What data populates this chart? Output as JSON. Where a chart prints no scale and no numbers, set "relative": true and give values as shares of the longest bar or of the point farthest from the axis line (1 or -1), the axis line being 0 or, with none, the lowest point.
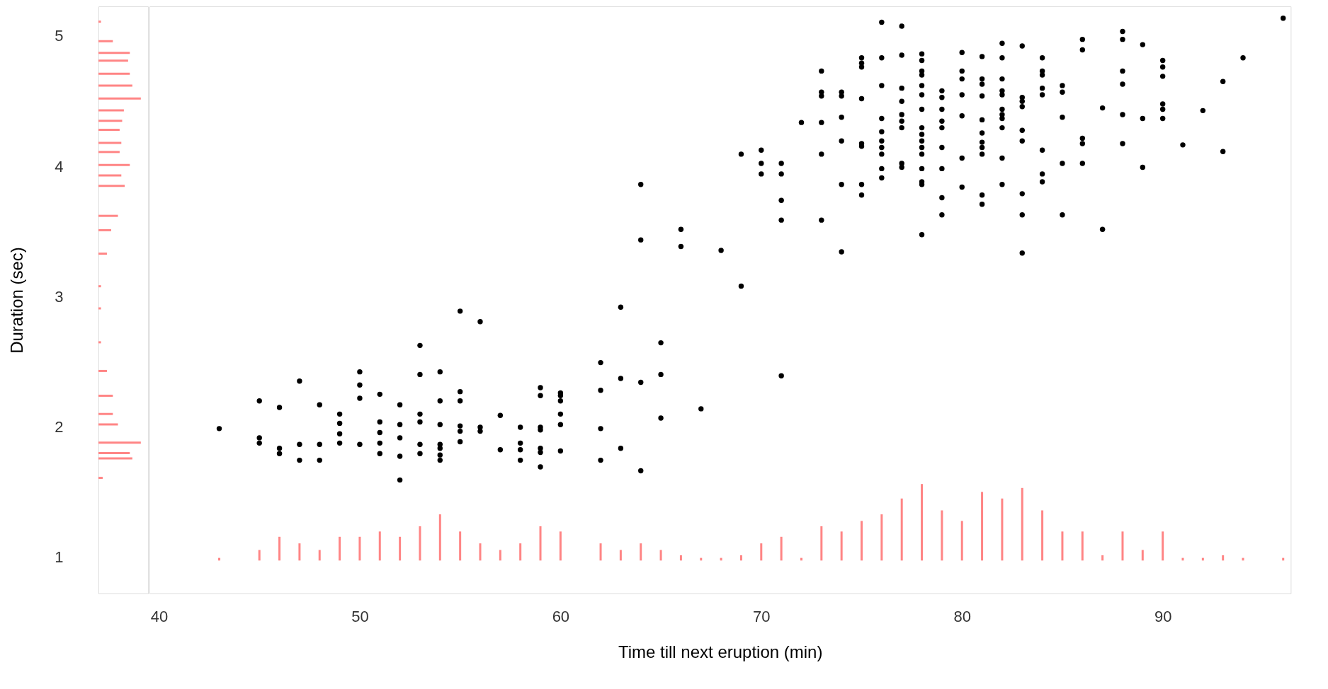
{
  "chart_data": [
    {
      "type": "bar",
      "orientation": "horizontal",
      "relative": true,
      "ylabel": "Duration (sec)",
      "ylim": [
        0.75,
        5.2
      ],
      "yticks": [
        1,
        2,
        3,
        4,
        5
      ],
      "tick_labels": "y",
      "grid": false,
      "series": [
        {
          "color": "#ff6666",
          "x": [
            5.11,
            4.96,
            4.87,
            4.81,
            4.71,
            4.62,
            4.52,
            4.43,
            4.35,
            4.28,
            4.18,
            4.11,
            4.01,
            3.93,
            3.85,
            3.62,
            3.51,
            3.33,
            3.08,
            2.91,
            2.65,
            2.43,
            2.24,
            2.1,
            2.02,
            1.88,
            1.8,
            1.76,
            1.61
          ],
          "values": [
            0.06,
            0.34,
            0.74,
            0.7,
            0.74,
            0.8,
            1,
            0.6,
            0.56,
            0.5,
            0.54,
            0.5,
            0.74,
            0.54,
            0.62,
            0.46,
            0.3,
            0.2,
            0.06,
            0.06,
            0.06,
            0.2,
            0.34,
            0.34,
            0.46,
            1,
            0.74,
            0.8,
            0.1
          ]
        }
      ]
    },
    {
      "type": "scatter",
      "xlabel": "Time till next eruption (min)",
      "xlim": [
        39.7,
        96.2
      ],
      "ylim": [
        0.75,
        5.2
      ],
      "xticks": [
        40,
        50,
        60,
        70,
        80,
        90
      ],
      "tick_labels": "x",
      "grid": false,
      "marker": "circle",
      "series": [
        {
          "color": "#000000",
          "x": [
            43,
            45,
            45,
            45,
            46,
            46,
            46,
            47,
            47,
            47,
            48,
            48,
            48,
            49,
            49,
            49,
            49,
            50,
            50,
            50,
            50,
            51,
            51,
            51,
            51,
            51,
            52,
            52,
            52,
            52,
            52,
            53,
            53,
            53,
            53,
            53,
            53,
            54,
            54,
            54,
            54,
            54,
            54,
            54,
            55,
            55,
            55,
            55,
            55,
            55,
            56,
            56,
            56,
            57,
            57,
            58,
            58,
            58,
            58,
            59,
            59,
            59,
            59,
            59,
            59,
            59,
            60,
            60,
            60,
            60,
            60,
            60,
            62,
            62,
            62,
            62,
            63,
            63,
            63,
            64,
            64,
            64,
            64,
            65,
            65,
            65,
            66,
            66,
            67,
            68,
            69,
            69,
            70,
            70,
            70,
            71,
            71,
            71,
            71,
            71,
            72,
            73,
            73,
            73,
            73,
            73,
            73,
            74,
            74,
            74,
            74,
            74,
            74,
            75,
            75,
            75,
            75,
            75,
            75,
            75,
            75,
            76,
            76,
            76,
            76,
            76,
            76,
            76,
            76,
            76,
            76,
            77,
            77,
            77,
            77,
            77,
            77,
            77,
            77,
            77,
            78,
            78,
            78,
            78,
            78,
            78,
            78,
            78,
            78,
            78,
            78,
            78,
            78,
            78,
            78,
            78,
            79,
            79,
            79,
            79,
            79,
            79,
            79,
            79,
            79,
            80,
            80,
            80,
            80,
            80,
            80,
            80,
            81,
            81,
            81,
            81,
            81,
            81,
            81,
            81,
            81,
            81,
            81,
            82,
            82,
            82,
            82,
            82,
            82,
            82,
            82,
            82,
            82,
            82,
            83,
            83,
            83,
            83,
            83,
            83,
            83,
            83,
            83,
            84,
            84,
            84,
            84,
            84,
            84,
            84,
            84,
            85,
            85,
            85,
            85,
            85,
            86,
            86,
            86,
            86,
            86,
            87,
            87,
            88,
            88,
            88,
            88,
            88,
            88,
            89,
            89,
            89,
            90,
            90,
            90,
            90,
            90,
            90,
            91,
            92,
            93,
            93,
            94,
            96
          ],
          "values": [
            2.0,
            2.21,
            1.93,
            1.89,
            2.16,
            1.85,
            1.81,
            2.36,
            1.88,
            1.76,
            2.18,
            1.88,
            1.76,
            2.11,
            2.04,
            1.96,
            1.89,
            2.43,
            2.33,
            2.23,
            1.88,
            2.26,
            2.05,
            1.97,
            1.89,
            1.81,
            2.18,
            2.03,
            1.93,
            1.79,
            1.61,
            2.63,
            2.41,
            2.11,
            2.05,
            1.88,
            1.81,
            2.43,
            2.21,
            2.03,
            1.88,
            1.85,
            1.8,
            1.76,
            2.89,
            2.28,
            2.21,
            2.02,
            1.98,
            1.9,
            2.81,
            2.01,
            1.98,
            2.1,
            1.84,
            2.01,
            1.89,
            1.84,
            1.76,
            2.31,
            2.25,
            2.01,
            1.99,
            1.85,
            1.82,
            1.71,
            2.27,
            2.25,
            2.21,
            2.11,
            2.03,
            1.83,
            2.5,
            2.29,
            2.0,
            1.76,
            2.92,
            2.38,
            1.85,
            3.85,
            3.43,
            2.35,
            1.68,
            2.65,
            2.41,
            2.08,
            3.51,
            3.38,
            2.15,
            3.35,
            4.08,
            3.08,
            4.11,
            4.01,
            3.93,
            4.01,
            3.93,
            3.73,
            3.58,
            2.4,
            4.32,
            4.71,
            4.55,
            4.52,
            4.32,
            4.08,
            3.58,
            4.55,
            4.52,
            4.36,
            4.18,
            3.85,
            3.34,
            4.81,
            4.77,
            4.74,
            4.5,
            4.16,
            4.14,
            3.85,
            3.77,
            5.08,
            4.81,
            4.6,
            4.35,
            4.25,
            4.18,
            4.13,
            4.08,
            3.97,
            3.9,
            5.05,
            4.83,
            4.58,
            4.48,
            4.38,
            4.33,
            4.28,
            4.01,
            3.98,
            4.84,
            4.79,
            4.71,
            4.68,
            4.6,
            4.53,
            4.42,
            4.28,
            4.23,
            4.18,
            4.13,
            4.08,
            3.97,
            3.87,
            3.85,
            3.47,
            4.56,
            4.51,
            4.42,
            4.33,
            4.28,
            4.13,
            3.97,
            3.75,
            3.62,
            4.85,
            4.71,
            4.65,
            4.53,
            4.37,
            4.05,
            3.83,
            4.82,
            4.65,
            4.61,
            4.52,
            4.34,
            4.24,
            4.17,
            4.13,
            4.08,
            3.77,
            3.7,
            4.92,
            4.81,
            4.65,
            4.56,
            4.53,
            4.42,
            4.38,
            4.35,
            4.28,
            4.05,
            3.85,
            4.9,
            4.51,
            4.48,
            4.44,
            4.26,
            4.18,
            3.78,
            3.62,
            3.33,
            4.81,
            4.71,
            4.68,
            4.58,
            4.53,
            4.11,
            3.93,
            3.87,
            4.6,
            4.55,
            4.36,
            4.01,
            3.62,
            4.95,
            4.87,
            4.2,
            4.16,
            4.01,
            4.43,
            3.51,
            5.01,
            4.95,
            4.71,
            4.61,
            4.38,
            4.16,
            4.91,
            4.35,
            3.98,
            4.79,
            4.74,
            4.67,
            4.46,
            4.42,
            4.35,
            4.15,
            4.41,
            4.63,
            4.1,
            4.81,
            5.11
          ]
        },
        {
          "type": "bar",
          "color": "#ff6666",
          "x": [
            43,
            45,
            46,
            47,
            48,
            49,
            50,
            51,
            52,
            53,
            54,
            55,
            56,
            57,
            58,
            59,
            60,
            62,
            63,
            64,
            65,
            66,
            67,
            68,
            69,
            70,
            71,
            72,
            73,
            74,
            75,
            76,
            77,
            78,
            79,
            80,
            81,
            82,
            83,
            84,
            85,
            86,
            87,
            88,
            89,
            90,
            91,
            92,
            93,
            94,
            96
          ],
          "base": [
            1,
            1,
            1,
            1,
            1,
            1,
            1,
            1,
            1,
            1,
            1,
            1,
            1,
            1,
            1,
            1,
            1,
            1,
            1,
            1,
            1,
            1,
            1,
            1,
            1,
            1,
            1,
            1,
            1,
            1,
            1,
            1,
            1,
            1,
            1,
            1,
            1,
            1,
            1,
            1,
            1,
            1,
            1,
            1,
            1,
            1,
            1,
            1,
            1,
            1,
            1
          ],
          "values": [
            0.02,
            0.08,
            0.18,
            0.13,
            0.08,
            0.18,
            0.18,
            0.22,
            0.18,
            0.26,
            0.35,
            0.22,
            0.13,
            0.08,
            0.13,
            0.26,
            0.22,
            0.13,
            0.08,
            0.13,
            0.08,
            0.04,
            0.02,
            0.02,
            0.04,
            0.13,
            0.18,
            0.02,
            0.26,
            0.22,
            0.3,
            0.35,
            0.47,
            0.58,
            0.38,
            0.3,
            0.52,
            0.47,
            0.55,
            0.38,
            0.22,
            0.22,
            0.04,
            0.22,
            0.08,
            0.22,
            0.02,
            0.02,
            0.04,
            0.02,
            0.02
          ]
        }
      ]
    }
  ]
}
